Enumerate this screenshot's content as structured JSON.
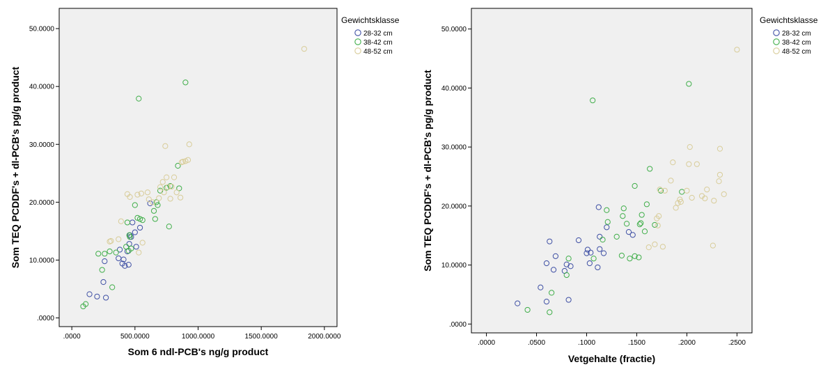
{
  "chart_data": [
    {
      "type": "scatter",
      "xlabel": "Som 6  ndl-PCB's ng/g product",
      "ylabel": "Som TEQ PCDDF's + dl-PCB's pg/g product",
      "xlim": [
        -100,
        2100
      ],
      "ylim": [
        -1.5,
        53.5
      ],
      "xticks": [
        0,
        500,
        1000,
        1500,
        2000
      ],
      "xtick_labels": [
        ".0000",
        "500.0000",
        "1000.0000",
        "1500.0000",
        "2000.0000"
      ],
      "yticks": [
        0,
        10,
        20,
        30,
        40,
        50
      ],
      "ytick_labels": [
        ".0000",
        "10.0000",
        "20.0000",
        "30.0000",
        "40.0000",
        "50.0000"
      ],
      "grid": false,
      "legend": {
        "title": "Gewichtsklasse",
        "position": "right-top"
      },
      "series": [
        {
          "name": "28-32 cm",
          "color": "#3e4fa4",
          "points": [
            [
              140,
              4.1
            ],
            [
              200,
              3.7
            ],
            [
              270,
              3.5
            ],
            [
              250,
              6.2
            ],
            [
              260,
              9.8
            ],
            [
              370,
              10.3
            ],
            [
              380,
              11.8
            ],
            [
              400,
              9.4
            ],
            [
              410,
              10.1
            ],
            [
              420,
              9.0
            ],
            [
              440,
              11.5
            ],
            [
              450,
              9.2
            ],
            [
              455,
              12.8
            ],
            [
              460,
              14.3
            ],
            [
              470,
              14.0
            ],
            [
              480,
              16.5
            ],
            [
              500,
              14.8
            ],
            [
              510,
              12.3
            ],
            [
              540,
              15.6
            ],
            [
              620,
              19.8
            ]
          ]
        },
        {
          "name": "38-42 cm",
          "color": "#3fae49",
          "points": [
            [
              90,
              2.0
            ],
            [
              110,
              2.4
            ],
            [
              210,
              11.1
            ],
            [
              240,
              8.3
            ],
            [
              260,
              11.1
            ],
            [
              300,
              11.5
            ],
            [
              320,
              5.3
            ],
            [
              350,
              11.3
            ],
            [
              430,
              12.3
            ],
            [
              440,
              16.5
            ],
            [
              450,
              11.6
            ],
            [
              455,
              14.3
            ],
            [
              460,
              14.0
            ],
            [
              470,
              12.0
            ],
            [
              500,
              19.5
            ],
            [
              520,
              17.3
            ],
            [
              530,
              37.9
            ],
            [
              540,
              17.1
            ],
            [
              560,
              16.9
            ],
            [
              650,
              18.5
            ],
            [
              660,
              17.1
            ],
            [
              670,
              20.0
            ],
            [
              680,
              19.5
            ],
            [
              700,
              22.0
            ],
            [
              750,
              22.5
            ],
            [
              770,
              15.8
            ],
            [
              780,
              22.8
            ],
            [
              840,
              26.3
            ],
            [
              850,
              22.4
            ],
            [
              900,
              40.7
            ]
          ]
        },
        {
          "name": "48-52 cm",
          "color": "#d8cc98",
          "points": [
            [
              300,
              13.2
            ],
            [
              310,
              13.3
            ],
            [
              370,
              13.6
            ],
            [
              390,
              16.7
            ],
            [
              440,
              21.4
            ],
            [
              460,
              20.9
            ],
            [
              520,
              21.3
            ],
            [
              530,
              11.3
            ],
            [
              550,
              21.5
            ],
            [
              560,
              13.0
            ],
            [
              600,
              21.7
            ],
            [
              610,
              20.5
            ],
            [
              640,
              20.0
            ],
            [
              690,
              20.7
            ],
            [
              700,
              22.6
            ],
            [
              720,
              23.5
            ],
            [
              730,
              21.7
            ],
            [
              740,
              29.7
            ],
            [
              750,
              24.3
            ],
            [
              760,
              22.6
            ],
            [
              780,
              20.6
            ],
            [
              790,
              22.7
            ],
            [
              810,
              24.3
            ],
            [
              830,
              21.7
            ],
            [
              860,
              20.8
            ],
            [
              870,
              26.9
            ],
            [
              880,
              27.0
            ],
            [
              900,
              27.1
            ],
            [
              920,
              27.3
            ],
            [
              930,
              30.0
            ],
            [
              1840,
              46.5
            ]
          ]
        }
      ]
    },
    {
      "type": "scatter",
      "xlabel": "Vetgehalte (fractie)",
      "ylabel": "Som TEQ PCDDF's + dl-PCB's pg/g product",
      "xlim": [
        -0.015,
        0.265
      ],
      "ylim": [
        -1.5,
        53.5
      ],
      "xticks": [
        0,
        0.05,
        0.1,
        0.15,
        0.2,
        0.25
      ],
      "xtick_labels": [
        ".0000",
        ".0500",
        ".1000",
        ".1500",
        ".2000",
        ".2500"
      ],
      "yticks": [
        0,
        10,
        20,
        30,
        40,
        50
      ],
      "ytick_labels": [
        ".0000",
        "10.0000",
        "20.0000",
        "30.0000",
        "40.0000",
        "50.0000"
      ],
      "grid": false,
      "legend": {
        "title": "Gewichtsklasse",
        "position": "right-top"
      },
      "series": [
        {
          "name": "28-32 cm",
          "color": "#3e4fa4",
          "points": [
            [
              0.031,
              3.5
            ],
            [
              0.054,
              6.2
            ],
            [
              0.06,
              3.8
            ],
            [
              0.06,
              10.3
            ],
            [
              0.063,
              14.0
            ],
            [
              0.067,
              9.2
            ],
            [
              0.069,
              11.5
            ],
            [
              0.078,
              9.0
            ],
            [
              0.08,
              10.1
            ],
            [
              0.082,
              4.1
            ],
            [
              0.084,
              9.8
            ],
            [
              0.092,
              14.2
            ],
            [
              0.1,
              12.0
            ],
            [
              0.101,
              12.6
            ],
            [
              0.103,
              10.3
            ],
            [
              0.104,
              12.1
            ],
            [
              0.111,
              9.6
            ],
            [
              0.112,
              19.8
            ],
            [
              0.113,
              14.8
            ],
            [
              0.113,
              12.7
            ],
            [
              0.117,
              12.0
            ],
            [
              0.12,
              16.4
            ],
            [
              0.142,
              15.6
            ],
            [
              0.146,
              15.1
            ]
          ]
        },
        {
          "name": "38-42 cm",
          "color": "#3fae49",
          "points": [
            [
              0.041,
              2.4
            ],
            [
              0.063,
              2.0
            ],
            [
              0.065,
              5.3
            ],
            [
              0.08,
              8.3
            ],
            [
              0.082,
              11.1
            ],
            [
              0.106,
              37.9
            ],
            [
              0.107,
              11.1
            ],
            [
              0.116,
              14.3
            ],
            [
              0.12,
              19.3
            ],
            [
              0.121,
              17.3
            ],
            [
              0.13,
              14.8
            ],
            [
              0.135,
              11.6
            ],
            [
              0.136,
              18.3
            ],
            [
              0.137,
              19.6
            ],
            [
              0.14,
              17.0
            ],
            [
              0.143,
              11.1
            ],
            [
              0.148,
              23.4
            ],
            [
              0.148,
              11.5
            ],
            [
              0.152,
              11.3
            ],
            [
              0.153,
              16.9
            ],
            [
              0.154,
              17.1
            ],
            [
              0.155,
              18.5
            ],
            [
              0.158,
              15.7
            ],
            [
              0.16,
              20.3
            ],
            [
              0.163,
              26.3
            ],
            [
              0.168,
              16.8
            ],
            [
              0.174,
              22.6
            ],
            [
              0.195,
              22.4
            ],
            [
              0.202,
              40.7
            ]
          ]
        },
        {
          "name": "48-52 cm",
          "color": "#d8cc98",
          "points": [
            [
              0.162,
              13.0
            ],
            [
              0.168,
              13.5
            ],
            [
              0.17,
              17.9
            ],
            [
              0.171,
              16.7
            ],
            [
              0.172,
              18.3
            ],
            [
              0.173,
              22.8
            ],
            [
              0.176,
              13.1
            ],
            [
              0.178,
              22.6
            ],
            [
              0.184,
              24.3
            ],
            [
              0.186,
              27.4
            ],
            [
              0.189,
              19.7
            ],
            [
              0.191,
              20.5
            ],
            [
              0.193,
              21.1
            ],
            [
              0.194,
              20.7
            ],
            [
              0.2,
              22.6
            ],
            [
              0.202,
              27.1
            ],
            [
              0.203,
              30.0
            ],
            [
              0.205,
              21.4
            ],
            [
              0.21,
              27.1
            ],
            [
              0.215,
              21.7
            ],
            [
              0.218,
              21.3
            ],
            [
              0.22,
              22.8
            ],
            [
              0.226,
              13.3
            ],
            [
              0.227,
              20.9
            ],
            [
              0.232,
              24.2
            ],
            [
              0.233,
              29.7
            ],
            [
              0.233,
              25.3
            ],
            [
              0.237,
              22.0
            ],
            [
              0.25,
              46.5
            ]
          ]
        }
      ]
    }
  ]
}
